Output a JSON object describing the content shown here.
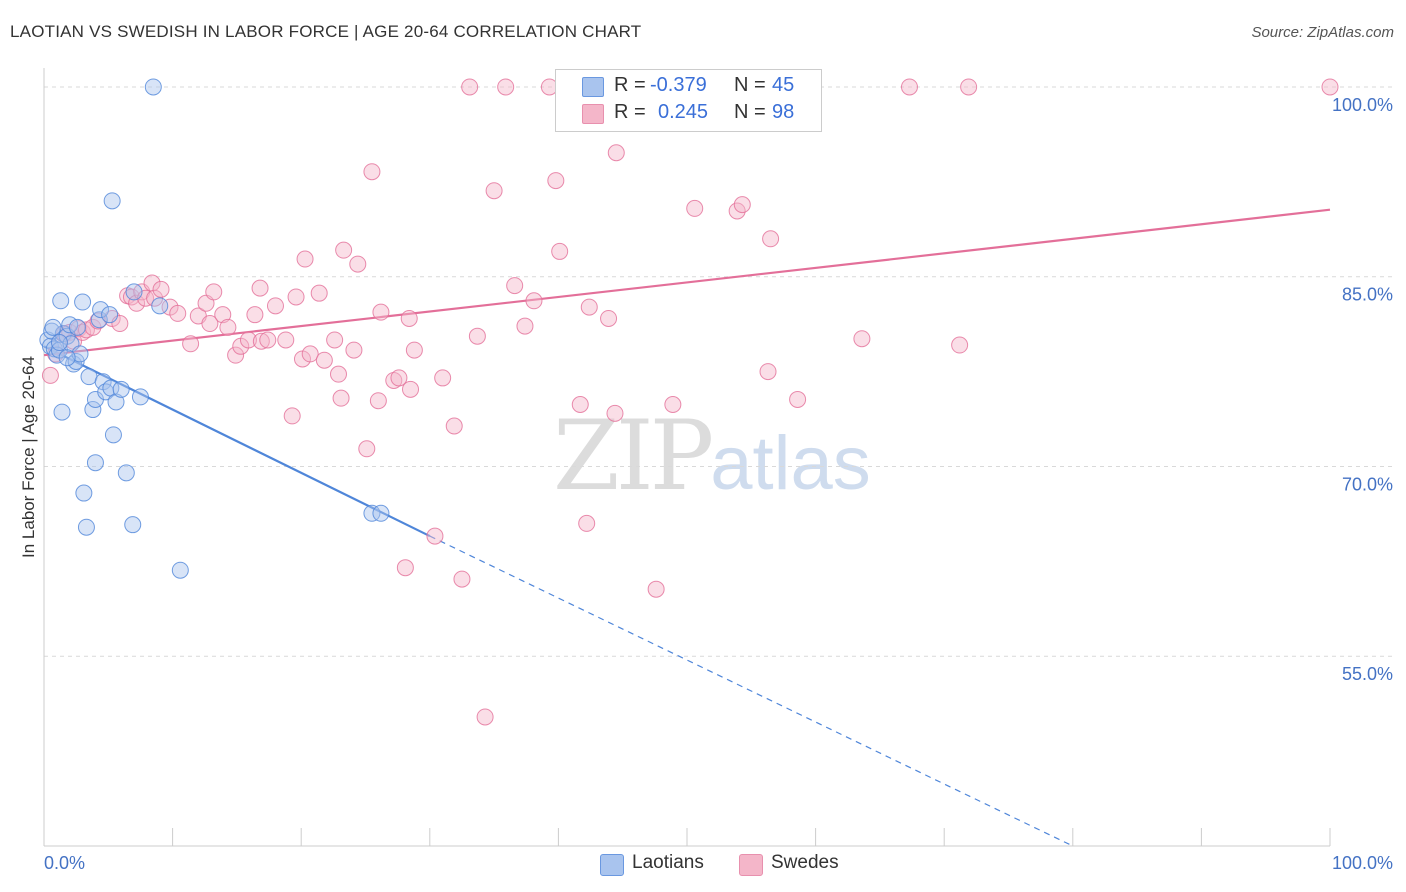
{
  "header": {
    "title": "LAOTIAN VS SWEDISH IN LABOR FORCE | AGE 20-64 CORRELATION CHART",
    "source": "Source: ZipAtlas.com"
  },
  "watermark": {
    "part1": "ZIP",
    "part2": "atlas"
  },
  "legend": {
    "rows": [
      {
        "r_label": "R =",
        "r_value": "-0.379",
        "n_label": "N =",
        "n_value": "45",
        "color": "#a9c4ee"
      },
      {
        "r_label": "R =",
        "r_value": "0.245",
        "n_label": "N =",
        "n_value": "98",
        "color": "#f4b6c9"
      }
    ]
  },
  "bottom_legend": [
    {
      "label": "Laotians",
      "color": "#a9c4ee"
    },
    {
      "label": "Swedes",
      "color": "#f4b6c9"
    }
  ],
  "chart_data": {
    "type": "scatter",
    "xlabel": "",
    "ylabel": "In Labor Force | Age 20-64",
    "xlim": [
      0,
      100
    ],
    "ylim": [
      40,
      101.5
    ],
    "x_tick_labels": [
      "0.0%",
      "100.0%"
    ],
    "y_ticks": [
      55,
      70,
      85,
      100
    ],
    "y_tick_labels": [
      "55.0%",
      "70.0%",
      "85.0%",
      "100.0%"
    ],
    "grid": true,
    "series": [
      {
        "name": "Laotians",
        "color": "#4f86d9",
        "fill": "#a9c4ee",
        "trend": {
          "x0": 0,
          "y0": 79.5,
          "x1": 30,
          "y1": 64.5,
          "x_dash_end": 80,
          "y_dash_end": 40
        },
        "points": [
          [
            0.3,
            80
          ],
          [
            0.5,
            79.5
          ],
          [
            0.6,
            80.7
          ],
          [
            0.8,
            79.3
          ],
          [
            1,
            78.8
          ],
          [
            1.2,
            79.2
          ],
          [
            1.3,
            83.1
          ],
          [
            1.4,
            74.3
          ],
          [
            1.5,
            80.5
          ],
          [
            1.8,
            80.3
          ],
          [
            2,
            81.2
          ],
          [
            2.1,
            79.7
          ],
          [
            2.3,
            78.1
          ],
          [
            2.5,
            78.3
          ],
          [
            2.6,
            81
          ],
          [
            2.8,
            78.9
          ],
          [
            3,
            83
          ],
          [
            3.1,
            67.9
          ],
          [
            3.3,
            65.2
          ],
          [
            3.5,
            77.1
          ],
          [
            3.8,
            74.5
          ],
          [
            4,
            75.3
          ],
          [
            4,
            70.3
          ],
          [
            4.3,
            81.6
          ],
          [
            4.4,
            82.4
          ],
          [
            4.6,
            76.7
          ],
          [
            4.8,
            75.9
          ],
          [
            5.1,
            82
          ],
          [
            5.2,
            76.2
          ],
          [
            5.3,
            91
          ],
          [
            5.4,
            72.5
          ],
          [
            5.6,
            75.1
          ],
          [
            6,
            76.1
          ],
          [
            6.4,
            69.5
          ],
          [
            6.9,
            65.4
          ],
          [
            7,
            83.8
          ],
          [
            7.5,
            75.5
          ],
          [
            8.5,
            100
          ],
          [
            9,
            82.7
          ],
          [
            10.6,
            61.8
          ],
          [
            25.5,
            66.3
          ],
          [
            26.2,
            66.3
          ],
          [
            1.8,
            78.6
          ],
          [
            1.2,
            79.8
          ],
          [
            0.7,
            81
          ]
        ]
      },
      {
        "name": "Swedes",
        "color": "#e36f99",
        "fill": "#f4b6c9",
        "trend": {
          "x0": 0,
          "y0": 78.8,
          "x1": 100,
          "y1": 90.3
        },
        "points": [
          [
            0.5,
            77.2
          ],
          [
            0.9,
            78.9
          ],
          [
            1.2,
            79.8
          ],
          [
            1.6,
            80.5
          ],
          [
            2,
            80.6
          ],
          [
            2.3,
            79.9
          ],
          [
            2.7,
            80.9
          ],
          [
            3,
            80.6
          ],
          [
            3.3,
            80.8
          ],
          [
            3.8,
            81
          ],
          [
            4.2,
            81.5
          ],
          [
            5.3,
            81.7
          ],
          [
            5.9,
            81.3
          ],
          [
            6.5,
            83.5
          ],
          [
            6.8,
            83.4
          ],
          [
            7.2,
            82.9
          ],
          [
            7.6,
            83.8
          ],
          [
            7.9,
            83.3
          ],
          [
            8.4,
            84.5
          ],
          [
            8.6,
            83.3
          ],
          [
            9.1,
            84
          ],
          [
            9.8,
            82.6
          ],
          [
            10.4,
            82.1
          ],
          [
            11.4,
            79.7
          ],
          [
            12,
            81.9
          ],
          [
            12.6,
            82.9
          ],
          [
            12.9,
            81.3
          ],
          [
            13.2,
            83.8
          ],
          [
            13.9,
            82
          ],
          [
            14.3,
            81
          ],
          [
            14.9,
            78.8
          ],
          [
            15.3,
            79.5
          ],
          [
            15.9,
            80
          ],
          [
            16.4,
            82
          ],
          [
            16.9,
            79.9
          ],
          [
            17.4,
            80
          ],
          [
            18,
            82.7
          ],
          [
            18.8,
            80
          ],
          [
            19.3,
            74
          ],
          [
            19.6,
            83.4
          ],
          [
            20.1,
            78.5
          ],
          [
            20.3,
            86.4
          ],
          [
            20.7,
            78.9
          ],
          [
            21.4,
            83.7
          ],
          [
            21.8,
            78.4
          ],
          [
            22.6,
            80
          ],
          [
            22.9,
            77.3
          ],
          [
            23.1,
            75.4
          ],
          [
            24.1,
            79.2
          ],
          [
            24.4,
            86
          ],
          [
            25.1,
            71.4
          ],
          [
            25.5,
            93.3
          ],
          [
            26,
            75.2
          ],
          [
            26.2,
            82.2
          ],
          [
            27.2,
            76.8
          ],
          [
            27.6,
            77
          ],
          [
            28.1,
            62
          ],
          [
            28.4,
            81.7
          ],
          [
            28.5,
            76.1
          ],
          [
            28.8,
            79.2
          ],
          [
            30.4,
            64.5
          ],
          [
            31,
            77
          ],
          [
            31.9,
            73.2
          ],
          [
            32.5,
            61.1
          ],
          [
            33.1,
            100
          ],
          [
            33.7,
            80.3
          ],
          [
            34.3,
            50.2
          ],
          [
            35,
            91.8
          ],
          [
            35.9,
            100
          ],
          [
            36.6,
            84.3
          ],
          [
            37.4,
            81.1
          ],
          [
            38.1,
            83.1
          ],
          [
            39.3,
            100
          ],
          [
            39.8,
            92.6
          ],
          [
            40.1,
            87
          ],
          [
            41.2,
            100
          ],
          [
            41.7,
            74.9
          ],
          [
            42.2,
            65.5
          ],
          [
            42.4,
            82.6
          ],
          [
            43.9,
            81.7
          ],
          [
            44.4,
            74.2
          ],
          [
            47.6,
            60.3
          ],
          [
            48.9,
            74.9
          ],
          [
            50,
            100
          ],
          [
            50.6,
            90.4
          ],
          [
            53.9,
            90.2
          ],
          [
            54.3,
            90.7
          ],
          [
            56.3,
            77.5
          ],
          [
            56.5,
            88
          ],
          [
            58.6,
            75.3
          ],
          [
            67.3,
            100
          ],
          [
            63.6,
            80.1
          ],
          [
            71.9,
            100
          ],
          [
            71.2,
            79.6
          ],
          [
            100,
            100
          ],
          [
            44.5,
            94.8
          ],
          [
            23.3,
            87.1
          ],
          [
            16.8,
            84.1
          ]
        ]
      }
    ]
  }
}
